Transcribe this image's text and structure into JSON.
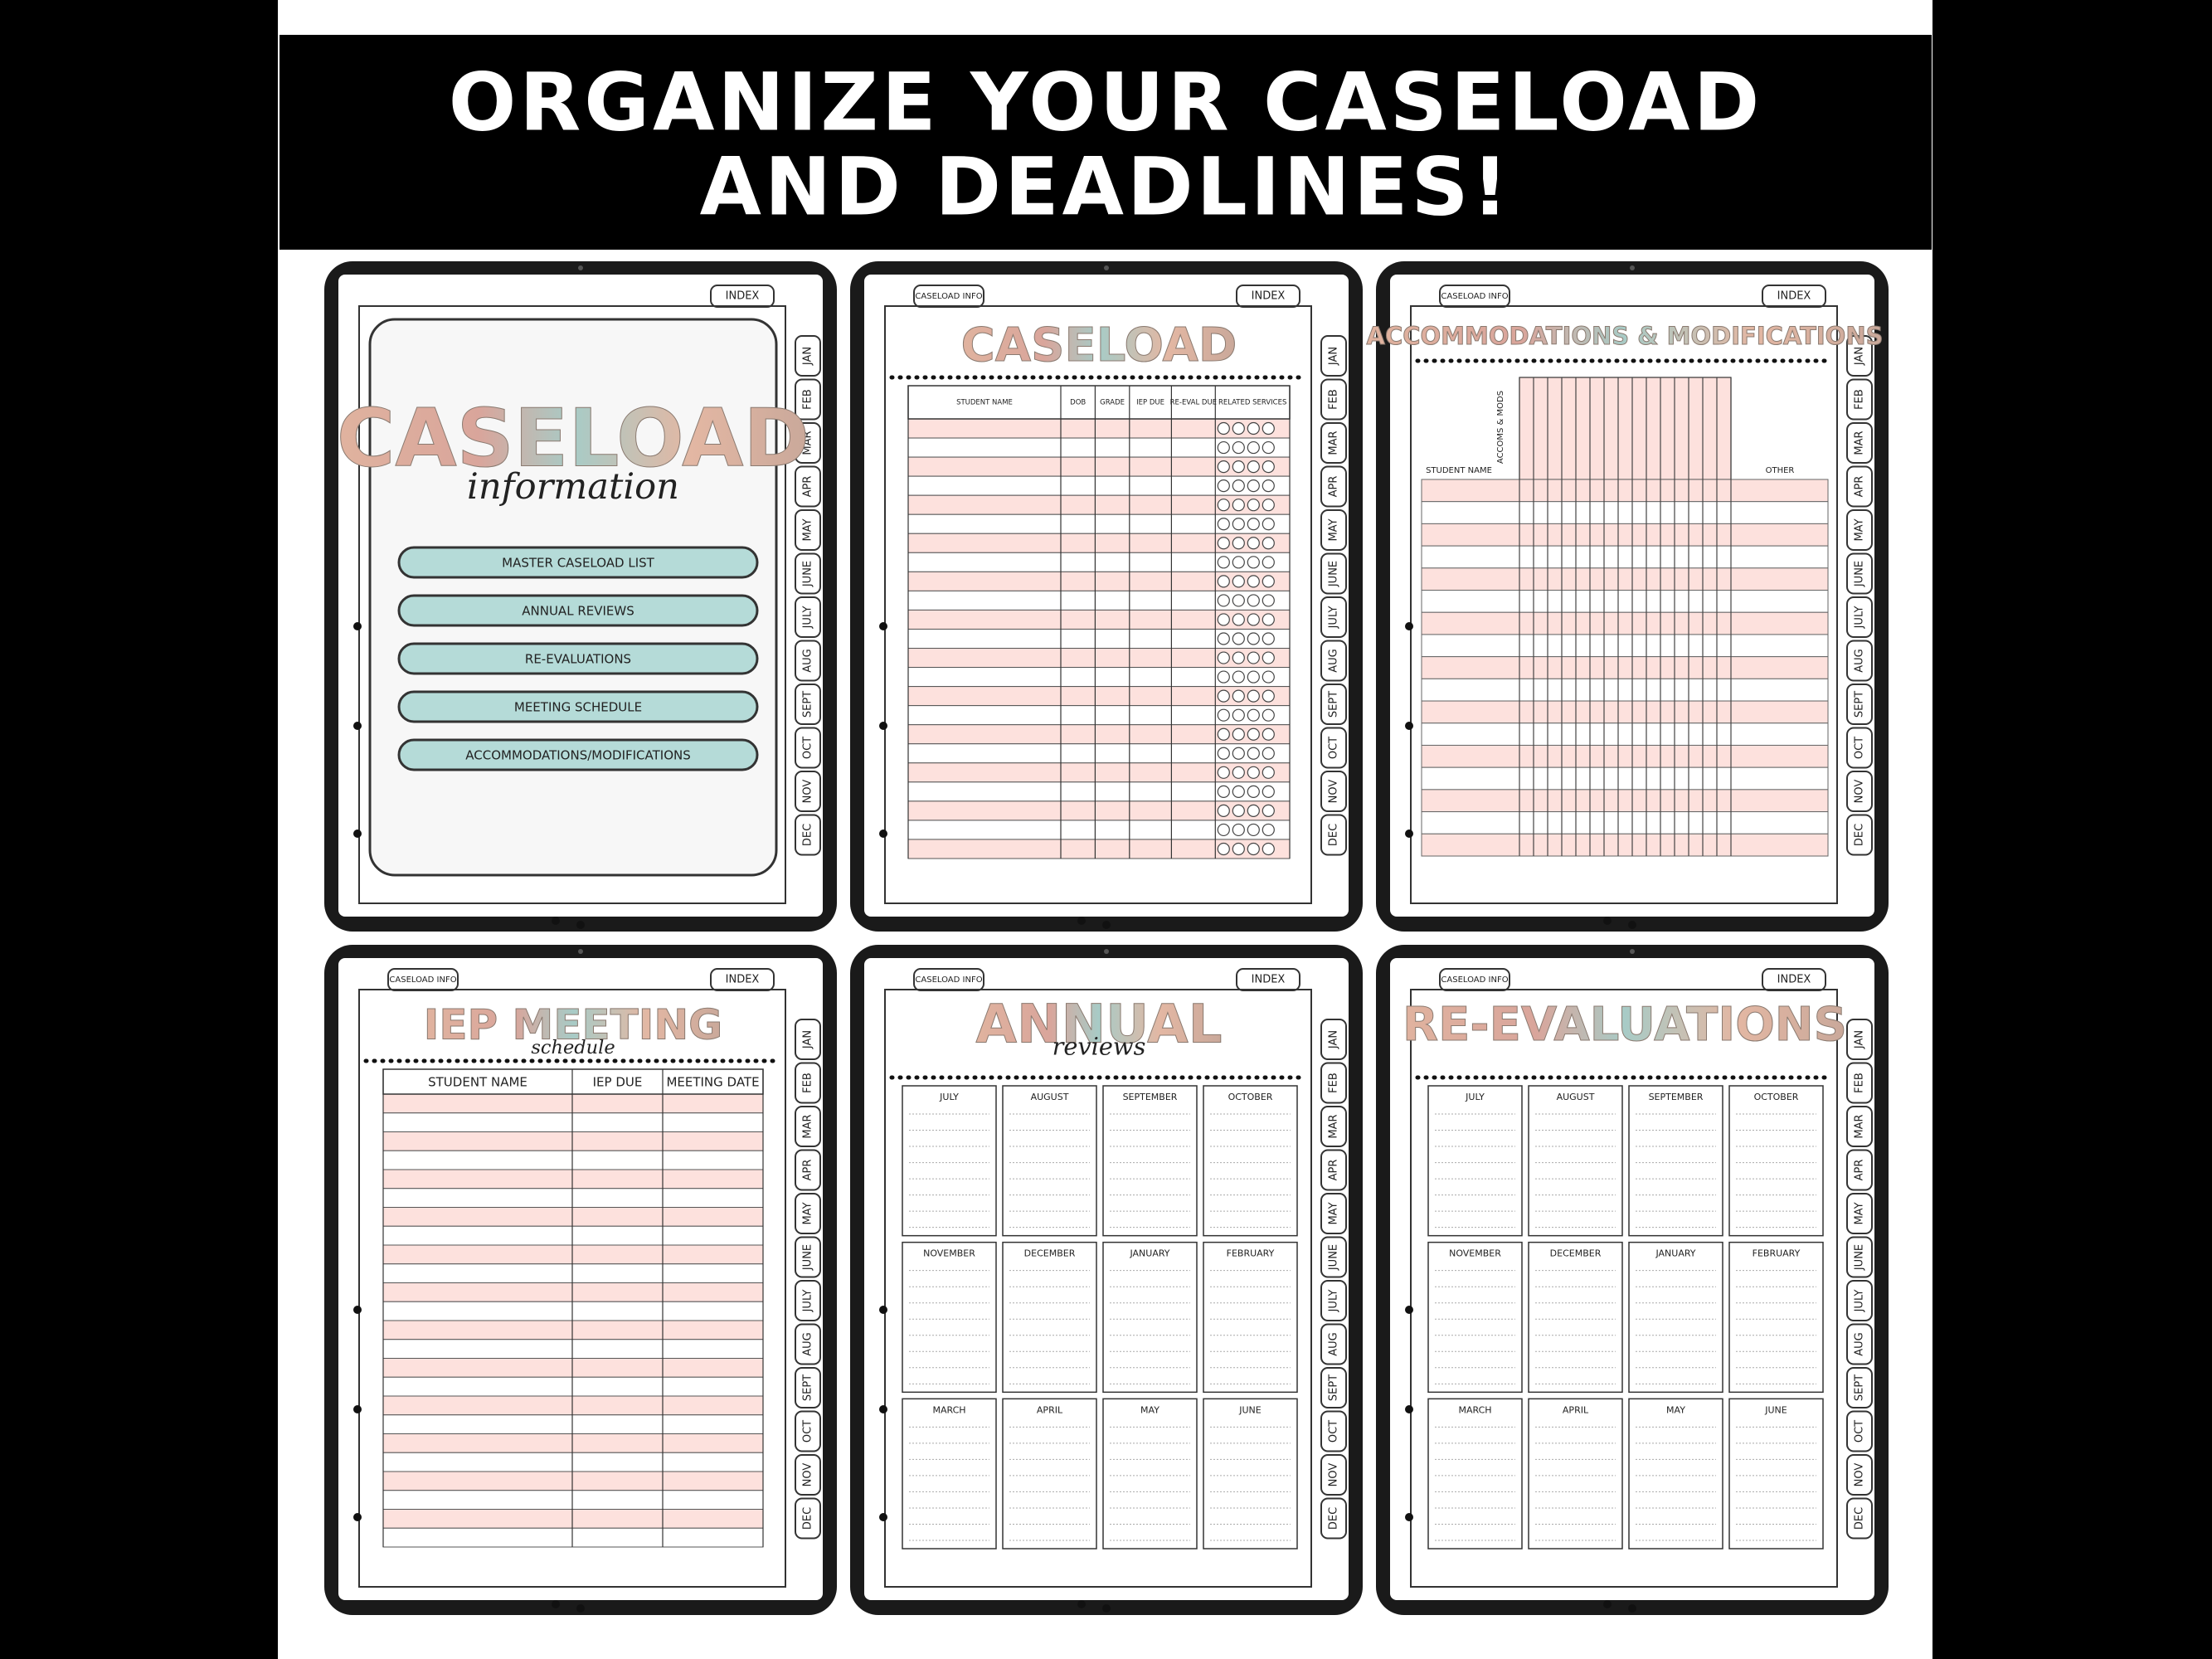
{
  "header": {
    "title_lines": [
      "ORGANIZE YOUR CASELOAD",
      "AND DEADLINES!"
    ]
  },
  "tabs": {
    "index": "INDEX",
    "caseload_info": "CASELOAD INFO",
    "months": [
      "JAN",
      "FEB",
      "MAR",
      "APR",
      "MAY",
      "JUNE",
      "JULY",
      "AUG",
      "SEPT",
      "OCT",
      "NOV",
      "DEC"
    ]
  },
  "screens": [
    {
      "title": "CASELOAD",
      "subtitle": "information",
      "buttons": [
        "MASTER CASELOAD LIST",
        "ANNUAL REVIEWS",
        "RE-EVALUATIONS",
        "MEETING SCHEDULE",
        "ACCOMMODATIONS/MODIFICATIONS"
      ]
    },
    {
      "title": "CASELOAD",
      "columns": [
        "STUDENT NAME",
        "DOB",
        "GRADE",
        "IEP DUE",
        "RE-EVAL DUE",
        "RELATED SERVICES"
      ]
    },
    {
      "title": "ACCOMMODATIONS & MODIFICATIONS",
      "labels": [
        "ACCOMS & MODS",
        "STUDENT NAME",
        "OTHER"
      ]
    },
    {
      "title": "IEP MEETING",
      "subtitle": "schedule",
      "columns": [
        "STUDENT NAME",
        "IEP DUE",
        "MEETING DATE"
      ]
    },
    {
      "title": "ANNUAL",
      "subtitle": "reviews",
      "months": [
        "JULY",
        "AUGUST",
        "SEPTEMBER",
        "OCTOBER",
        "NOVEMBER",
        "DECEMBER",
        "JANUARY",
        "FEBRUARY",
        "MARCH",
        "APRIL",
        "MAY",
        "JUNE"
      ]
    },
    {
      "title": "RE-EVALUATIONS",
      "months": [
        "JULY",
        "AUGUST",
        "SEPTEMBER",
        "OCTOBER",
        "NOVEMBER",
        "DECEMBER",
        "JANUARY",
        "FEBRUARY",
        "MARCH",
        "APRIL",
        "MAY",
        "JUNE"
      ]
    }
  ]
}
